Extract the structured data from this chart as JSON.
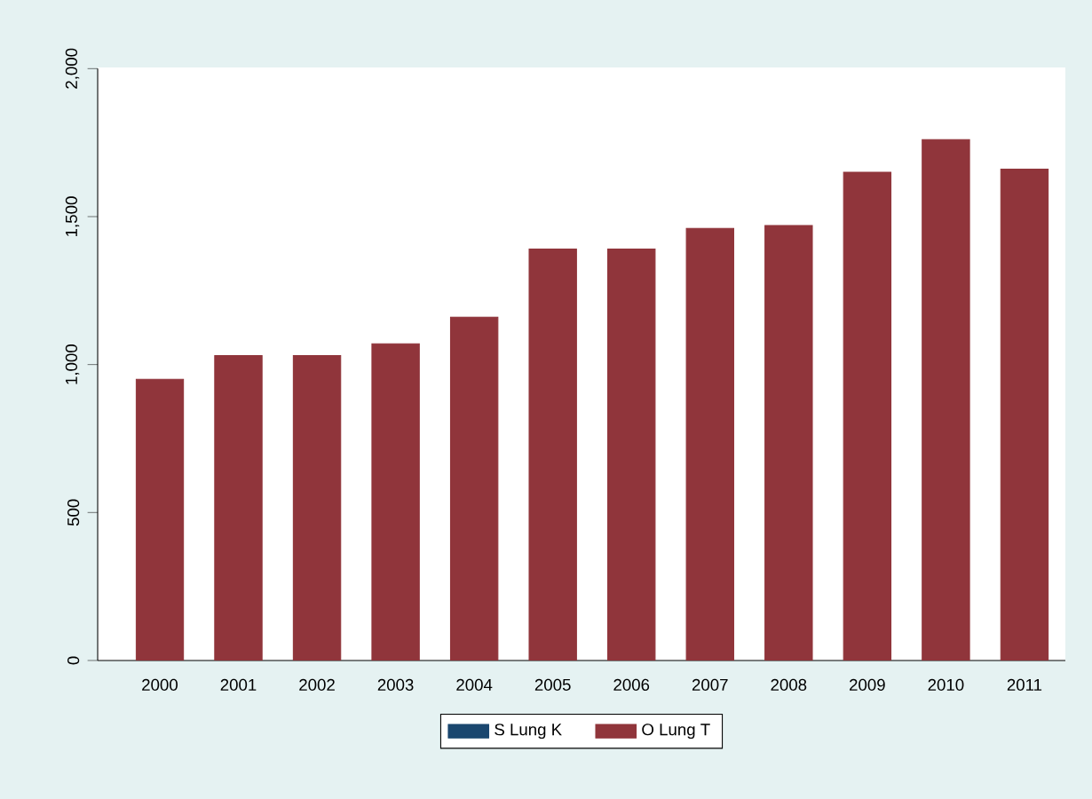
{
  "chart_data": {
    "type": "bar",
    "categories": [
      "2000",
      "2001",
      "2002",
      "2003",
      "2004",
      "2005",
      "2006",
      "2007",
      "2008",
      "2009",
      "2010",
      "2011"
    ],
    "series": [
      {
        "name": "S Lung K",
        "color": "#1a476f",
        "values": [
          null,
          null,
          null,
          null,
          null,
          null,
          null,
          null,
          null,
          null,
          null,
          null
        ]
      },
      {
        "name": "O Lung T",
        "color": "#90353b",
        "values": [
          950,
          1030,
          1030,
          1070,
          1160,
          1390,
          1390,
          1460,
          1470,
          1650,
          1760,
          1660
        ]
      }
    ],
    "ylim": [
      0,
      2000
    ],
    "yticks": [
      0,
      500,
      {
        "value": 1000,
        "label": "1,000"
      },
      {
        "value": 1500,
        "label": "1,500"
      },
      {
        "value": 2000,
        "label": "2,000"
      }
    ],
    "grid": false,
    "legend": "bottom"
  }
}
